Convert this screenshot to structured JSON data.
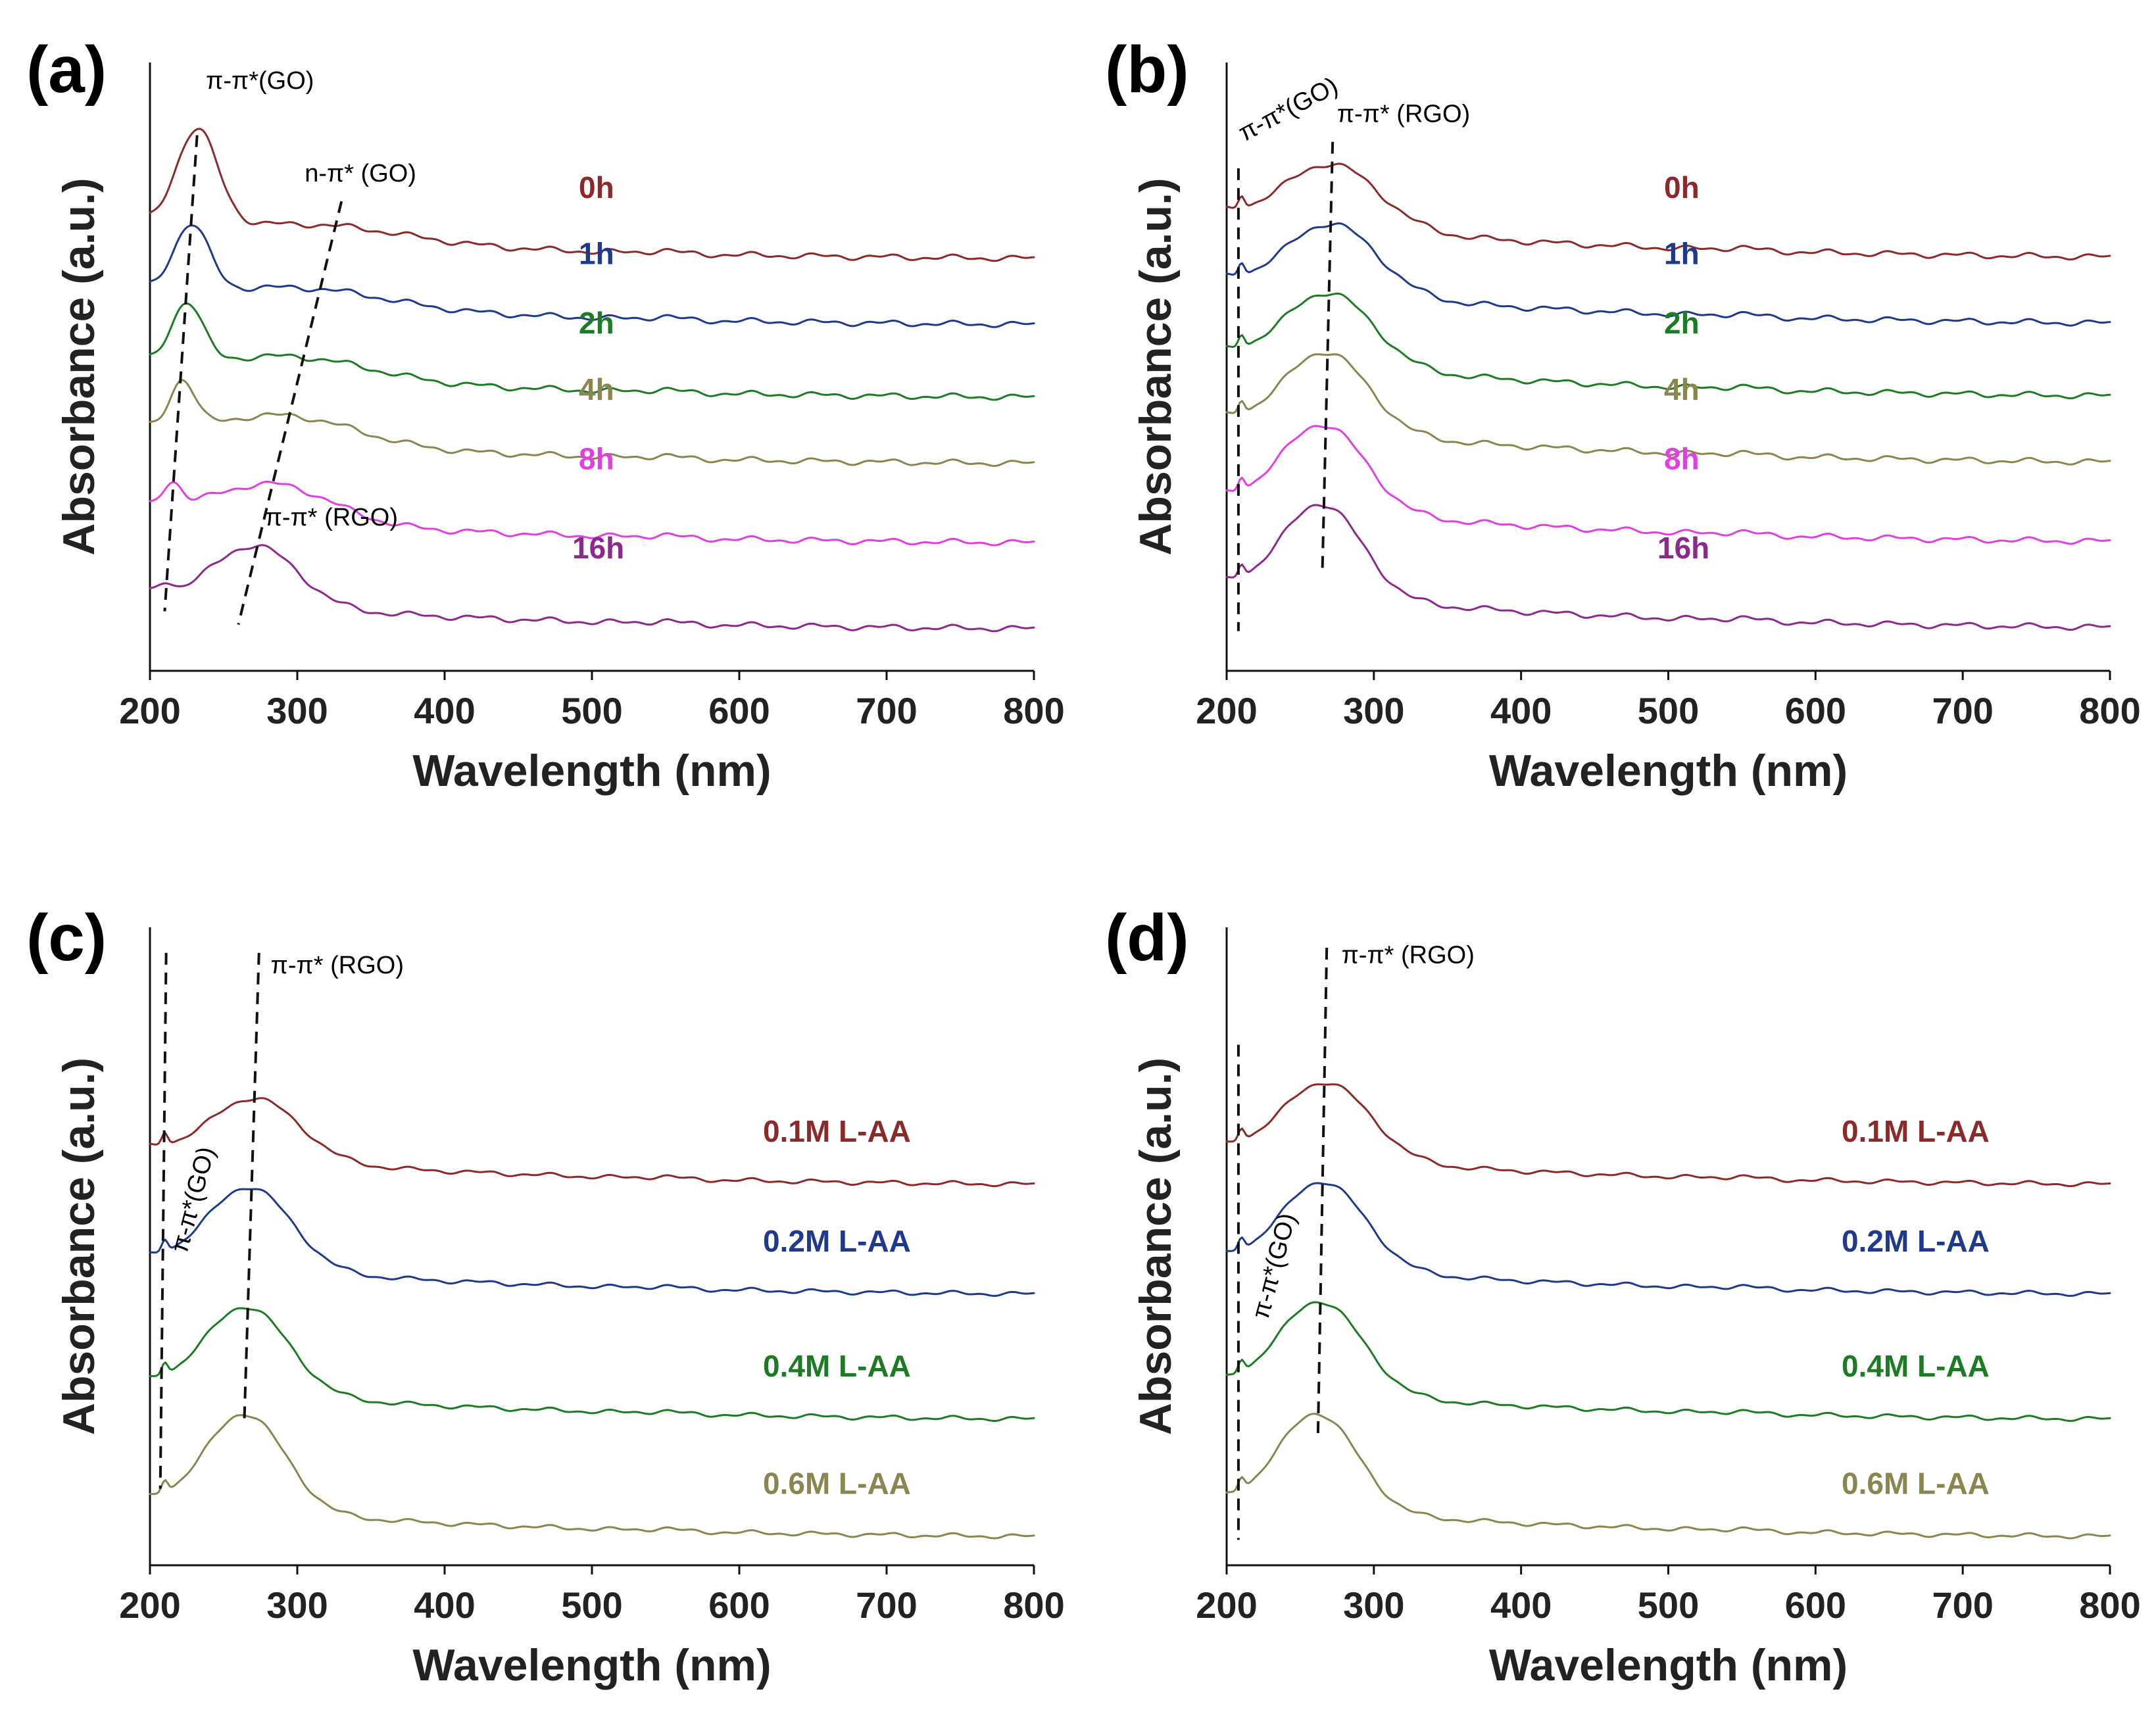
{
  "chart_data": [
    {
      "panel": "(a)",
      "type": "line",
      "xlabel": "Wavelength (nm)",
      "ylabel": "Absorbance (a.u.)",
      "xlim": [
        200,
        800
      ],
      "xticks": [
        200,
        300,
        400,
        500,
        600,
        700,
        800
      ],
      "grid": false,
      "series": [
        {
          "name": "0h",
          "color": "#8b2a2a",
          "offset": 5.6,
          "peaks": [
            {
              "x": 232,
              "h": 1.45,
              "w": 20
            },
            {
              "x": 320,
              "h": 0.22,
              "w": 80
            }
          ],
          "tail": 0.0
        },
        {
          "name": "1h",
          "color": "#1f3a8a",
          "offset": 4.6,
          "peaks": [
            {
              "x": 228,
              "h": 1.0,
              "w": 17
            },
            {
              "x": 310,
              "h": 0.25,
              "w": 75
            }
          ],
          "tail": 0.0
        },
        {
          "name": "2h",
          "color": "#1e7b25",
          "offset": 3.5,
          "peaks": [
            {
              "x": 225,
              "h": 0.9,
              "w": 15
            },
            {
              "x": 302,
              "h": 0.3,
              "w": 70
            }
          ],
          "tail": 0.0
        },
        {
          "name": "4h",
          "color": "#8a8650",
          "offset": 2.5,
          "peaks": [
            {
              "x": 222,
              "h": 0.7,
              "w": 12
            },
            {
              "x": 295,
              "h": 0.4,
              "w": 65
            }
          ],
          "tail": 0.0
        },
        {
          "name": "8h",
          "color": "#e040e0",
          "offset": 1.3,
          "peaks": [
            {
              "x": 215,
              "h": 0.35,
              "w": 9
            },
            {
              "x": 285,
              "h": 0.55,
              "w": 55
            }
          ],
          "tail": 0.0
        },
        {
          "name": "16h",
          "color": "#8b2a8b",
          "offset": 0.0,
          "peaks": [
            {
              "x": 210,
              "h": 0.15,
              "w": 7
            },
            {
              "x": 272,
              "h": 0.9,
              "w": 40
            }
          ],
          "tail": 0.0
        }
      ],
      "annotations": [
        {
          "text": "π-π*(GO)",
          "x": 238,
          "y": 8.2
        },
        {
          "text": "n-π* (GO)",
          "x": 305,
          "y": 6.8
        },
        {
          "text": "π-π* (RGO)",
          "x": 278,
          "y": 1.6
        }
      ],
      "guides": [
        {
          "x1": 232,
          "y1": 7.5,
          "x2": 210,
          "y2": 0.3
        },
        {
          "x1": 330,
          "y1": 6.5,
          "x2": 260,
          "y2": 0.1
        }
      ]
    },
    {
      "panel": "(b)",
      "type": "line",
      "xlabel": "Wavelength (nm)",
      "ylabel": "Absorbance (a.u.)",
      "xlim": [
        200,
        800
      ],
      "xticks": [
        200,
        300,
        400,
        500,
        600,
        700,
        800
      ],
      "grid": false,
      "series": [
        {
          "name": "0h",
          "color": "#8b2a2a",
          "offset": 5.6,
          "peaks": [
            {
              "x": 210,
              "h": 0.2,
              "w": 3
            },
            {
              "x": 272,
              "h": 0.95,
              "w": 45
            }
          ],
          "tail": 0.15
        },
        {
          "name": "1h",
          "color": "#1f3a8a",
          "offset": 4.6,
          "peaks": [
            {
              "x": 210,
              "h": 0.2,
              "w": 3
            },
            {
              "x": 272,
              "h": 1.05,
              "w": 43
            }
          ],
          "tail": 0.15
        },
        {
          "name": "2h",
          "color": "#1e7b25",
          "offset": 3.5,
          "peaks": [
            {
              "x": 210,
              "h": 0.2,
              "w": 3
            },
            {
              "x": 270,
              "h": 1.1,
              "w": 42
            }
          ],
          "tail": 0.15
        },
        {
          "name": "4h",
          "color": "#8a8650",
          "offset": 2.5,
          "peaks": [
            {
              "x": 210,
              "h": 0.2,
              "w": 3
            },
            {
              "x": 268,
              "h": 1.2,
              "w": 40
            }
          ],
          "tail": 0.15
        },
        {
          "name": "8h",
          "color": "#e040e0",
          "offset": 1.3,
          "peaks": [
            {
              "x": 210,
              "h": 0.2,
              "w": 3
            },
            {
              "x": 266,
              "h": 1.3,
              "w": 40
            }
          ],
          "tail": 0.15
        },
        {
          "name": "16h",
          "color": "#8b2a8b",
          "offset": 0.0,
          "peaks": [
            {
              "x": 210,
              "h": 0.2,
              "w": 3
            },
            {
              "x": 265,
              "h": 1.4,
              "w": 38
            }
          ],
          "tail": 0.15
        }
      ],
      "annotations": [
        {
          "text": "π-π*(GO)",
          "x": 212,
          "y": 7.4,
          "rotate": -28
        },
        {
          "text": "π-π* (RGO)",
          "x": 275,
          "y": 7.7
        }
      ],
      "guides": [
        {
          "x1": 208,
          "y1": 7.0,
          "x2": 208,
          "y2": 0.0
        },
        {
          "x1": 272,
          "y1": 7.4,
          "x2": 265,
          "y2": 0.9
        }
      ]
    },
    {
      "panel": "(c)",
      "type": "line",
      "xlabel": "Wavelength (nm)",
      "ylabel": "Absorbance (a.u.)",
      "xlim": [
        200,
        800
      ],
      "xticks": [
        200,
        300,
        400,
        500,
        600,
        700,
        800
      ],
      "grid": false,
      "series": [
        {
          "name": "0.1M L-AA",
          "color": "#8b2a2a",
          "offset": 6.9,
          "peaks": [
            {
              "x": 210,
              "h": 0.25,
              "w": 3
            },
            {
              "x": 272,
              "h": 1.2,
              "w": 42
            }
          ],
          "tail": 0.2
        },
        {
          "name": "0.2M L-AA",
          "color": "#1f3a8a",
          "offset": 4.75,
          "peaks": [
            {
              "x": 210,
              "h": 0.25,
              "w": 3
            },
            {
              "x": 268,
              "h": 1.6,
              "w": 40
            }
          ],
          "tail": 0.2
        },
        {
          "name": "0.4M L-AA",
          "color": "#1e7b25",
          "offset": 2.3,
          "peaks": [
            {
              "x": 210,
              "h": 0.25,
              "w": 3
            },
            {
              "x": 266,
              "h": 1.7,
              "w": 40
            }
          ],
          "tail": 0.2
        },
        {
          "name": "0.6M L-AA",
          "color": "#8a8650",
          "offset": 0.0,
          "peaks": [
            {
              "x": 210,
              "h": 0.25,
              "w": 3
            },
            {
              "x": 265,
              "h": 1.9,
              "w": 38
            }
          ],
          "tail": 0.2
        }
      ],
      "annotations": [
        {
          "text": "π-π* (RGO)",
          "x": 282,
          "y": 11.1
        },
        {
          "text": "π-π*(GO)",
          "x": 225,
          "y": 5.6,
          "rotate": -75
        }
      ],
      "guides": [
        {
          "x1": 211,
          "y1": 11.5,
          "x2": 207,
          "y2": 1.0
        },
        {
          "x1": 274,
          "y1": 11.5,
          "x2": 264,
          "y2": 2.3
        }
      ]
    },
    {
      "panel": "(d)",
      "type": "line",
      "xlabel": "Wavelength (nm)",
      "ylabel": "Absorbance (a.u.)",
      "xlim": [
        200,
        800
      ],
      "xticks": [
        200,
        300,
        400,
        500,
        600,
        700,
        800
      ],
      "grid": false,
      "series": [
        {
          "name": "0.1M L-AA",
          "color": "#8b2a2a",
          "offset": 6.9,
          "peaks": [
            {
              "x": 210,
              "h": 0.25,
              "w": 3
            },
            {
              "x": 268,
              "h": 1.5,
              "w": 42
            }
          ],
          "tail": 0.2
        },
        {
          "name": "0.2M L-AA",
          "color": "#1f3a8a",
          "offset": 4.75,
          "peaks": [
            {
              "x": 210,
              "h": 0.25,
              "w": 3
            },
            {
              "x": 266,
              "h": 1.7,
              "w": 40
            }
          ],
          "tail": 0.2
        },
        {
          "name": "0.4M L-AA",
          "color": "#1e7b25",
          "offset": 2.3,
          "peaks": [
            {
              "x": 210,
              "h": 0.25,
              "w": 3
            },
            {
              "x": 264,
              "h": 1.8,
              "w": 40
            }
          ],
          "tail": 0.2
        },
        {
          "name": "0.6M L-AA",
          "color": "#8a8650",
          "offset": 0.0,
          "peaks": [
            {
              "x": 210,
              "h": 0.25,
              "w": 3
            },
            {
              "x": 262,
              "h": 1.9,
              "w": 38
            }
          ],
          "tail": 0.2
        }
      ],
      "annotations": [
        {
          "text": "π-π* (RGO)",
          "x": 278,
          "y": 11.3
        },
        {
          "text": "π-π*(GO)",
          "x": 228,
          "y": 4.3,
          "rotate": -75
        }
      ],
      "guides": [
        {
          "x1": 208,
          "y1": 9.7,
          "x2": 208,
          "y2": 0.0
        },
        {
          "x1": 268,
          "y1": 11.6,
          "x2": 262,
          "y2": 2.0
        }
      ]
    }
  ]
}
